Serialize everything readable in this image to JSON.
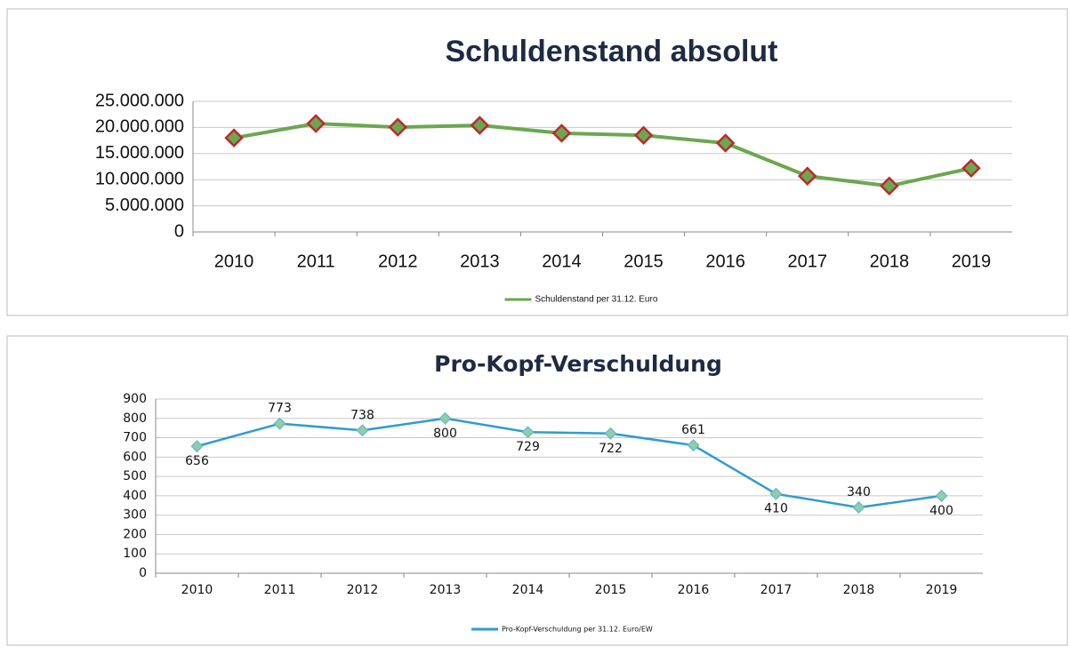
{
  "chart_data": [
    {
      "type": "line",
      "title": "Schuldenstand absolut",
      "categories": [
        "2010",
        "2011",
        "2012",
        "2013",
        "2014",
        "2015",
        "2016",
        "2017",
        "2018",
        "2019"
      ],
      "series": [
        {
          "name": "Schuldenstand per 31.12. Euro",
          "color": "#6aa84f",
          "marker_edge": "#c0282d",
          "values": [
            18000000,
            20750000,
            20050000,
            20400000,
            18900000,
            18500000,
            17000000,
            10700000,
            8800000,
            12200000
          ]
        }
      ],
      "ylim": [
        0,
        25000000
      ],
      "yticks": [
        0,
        {
          "value": 5000000,
          "label": "5.000.000"
        },
        {
          "value": 10000000,
          "label": "10.000.000"
        },
        {
          "value": 15000000,
          "label": "15.000.000"
        },
        {
          "value": 20000000,
          "label": "20.000.000"
        },
        {
          "value": 25000000,
          "label": "25.000.000"
        }
      ],
      "grid": true,
      "legend": "bottom"
    },
    {
      "type": "line",
      "title": "Pro-Kopf-Verschuldung",
      "categories": [
        "2010",
        "2011",
        "2012",
        "2013",
        "2014",
        "2015",
        "2016",
        "2017",
        "2018",
        "2019"
      ],
      "series": [
        {
          "name": "Pro-Kopf-Verschuldung per 31.12. Euro/EW",
          "color": "#2e9bd6",
          "marker_edge": "#6fb7d8",
          "values": [
            656,
            773,
            738,
            800,
            729,
            722,
            661,
            410,
            340,
            400
          ]
        }
      ],
      "ylim": [
        0,
        900
      ],
      "yticks": [
        0,
        100,
        200,
        300,
        400,
        500,
        600,
        700,
        800,
        900
      ],
      "grid": true,
      "legend": "bottom",
      "data_labels": true
    }
  ]
}
